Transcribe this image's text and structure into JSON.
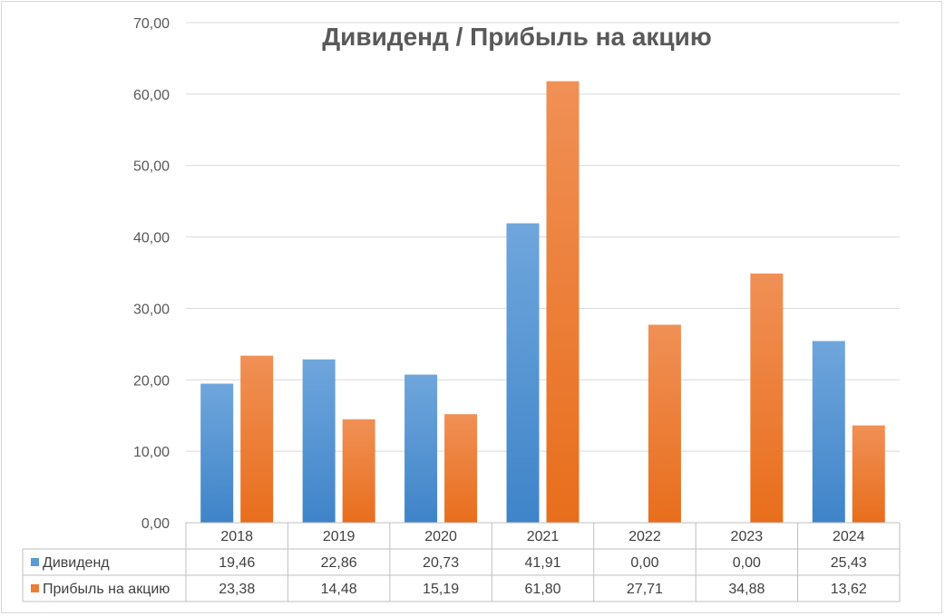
{
  "chart_data": {
    "type": "bar",
    "title": "Дивиденд / Прибыль на акцию",
    "categories": [
      "2018",
      "2019",
      "2020",
      "2021",
      "2022",
      "2023",
      "2024"
    ],
    "series": [
      {
        "name": "Дивиденд",
        "color": "#5b9bd5",
        "values": [
          19.46,
          22.86,
          20.73,
          41.91,
          0.0,
          0.0,
          25.43
        ],
        "labels": [
          "19,46",
          "22,86",
          "20,73",
          "41,91",
          "0,00",
          "0,00",
          "25,43"
        ]
      },
      {
        "name": "Прибыль на акцию",
        "color": "#ed7d31",
        "values": [
          23.38,
          14.48,
          15.19,
          61.8,
          27.71,
          34.88,
          13.62
        ],
        "labels": [
          "23,38",
          "14,48",
          "15,19",
          "61,80",
          "27,71",
          "34,88",
          "13,62"
        ]
      }
    ],
    "ylim": [
      0,
      70
    ],
    "y_ticks": [
      "0,00",
      "10,00",
      "20,00",
      "30,00",
      "40,00",
      "50,00",
      "60,00",
      "70,00"
    ],
    "grid": true,
    "legend": "data-table"
  }
}
